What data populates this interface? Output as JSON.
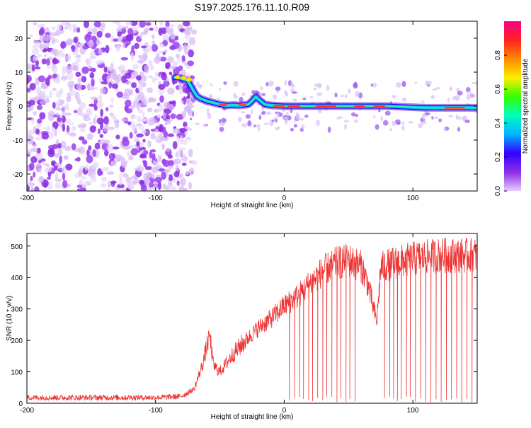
{
  "title": "S197.2025.176.11.10.R09",
  "chart_data": [
    {
      "type": "heatmap",
      "xlabel": "Height of straight line (km)",
      "ylabel": "Frequency (Hz)",
      "xlim": [
        -200,
        150
      ],
      "ylim": [
        -25,
        25
      ],
      "x_ticks": [
        -200,
        -100,
        0,
        100
      ],
      "x_tick_labels": [
        "-200",
        "-100",
        "0",
        "100"
      ],
      "y_ticks": [
        -20,
        -10,
        0,
        10,
        20
      ],
      "y_tick_labels": [
        "-20",
        "-10",
        "0",
        "10",
        "20"
      ],
      "colorbar": {
        "label": "Normalized spectral amplitude",
        "range": [
          0,
          1
        ],
        "ticks": [
          0.0,
          0.2,
          0.4,
          0.6,
          0.8
        ],
        "tick_labels": [
          "0.0",
          "0.2",
          "0.4",
          "0.6",
          "0.8"
        ],
        "colormap": [
          "#e6ccff",
          "#8c2ee6",
          "#3300ff",
          "#00b3ff",
          "#00ffbf",
          "#33ff00",
          "#ffee00",
          "#ff8800",
          "#ff2222",
          "#ff0080"
        ]
      },
      "noise_region_x": [
        -200,
        -78
      ],
      "ridge": [
        {
          "x": -85,
          "f": 8.5
        },
        {
          "x": -80,
          "f": 8.2
        },
        {
          "x": -75,
          "f": 7.5
        },
        {
          "x": -72,
          "f": 5.5
        },
        {
          "x": -70,
          "f": 4.2
        },
        {
          "x": -68,
          "f": 3.0
        },
        {
          "x": -65,
          "f": 2.2
        },
        {
          "x": -60,
          "f": 1.5
        },
        {
          "x": -55,
          "f": 1.0
        },
        {
          "x": -50,
          "f": 0.5
        },
        {
          "x": -45,
          "f": 0.2
        },
        {
          "x": -40,
          "f": 0.3
        },
        {
          "x": -35,
          "f": 0.2
        },
        {
          "x": -28,
          "f": 0.5
        },
        {
          "x": -25,
          "f": 1.5
        },
        {
          "x": -22,
          "f": 2.8
        },
        {
          "x": -20,
          "f": 2.0
        },
        {
          "x": -15,
          "f": 0.5
        },
        {
          "x": -10,
          "f": 0.2
        },
        {
          "x": 0,
          "f": 0.0
        },
        {
          "x": 20,
          "f": 0.0
        },
        {
          "x": 50,
          "f": 0.0
        },
        {
          "x": 80,
          "f": 0.0
        },
        {
          "x": 110,
          "f": -0.5
        },
        {
          "x": 130,
          "f": -0.5
        },
        {
          "x": 150,
          "f": -0.5
        }
      ],
      "peak_segments": [
        [
          -50,
          -45
        ],
        [
          -35,
          -30
        ],
        [
          -8,
          0
        ],
        [
          3,
          12
        ],
        [
          25,
          40
        ],
        [
          55,
          62
        ],
        [
          70,
          78
        ],
        [
          125,
          140
        ]
      ]
    },
    {
      "type": "line",
      "xlabel": "Height of straight line (km)",
      "ylabel": "SNR (10 * v/v)",
      "xlim": [
        -200,
        150
      ],
      "ylim": [
        0,
        540
      ],
      "x_ticks": [
        -200,
        -100,
        0,
        100
      ],
      "x_tick_labels": [
        "-200",
        "-100",
        "0",
        "100"
      ],
      "y_ticks": [
        0,
        100,
        200,
        300,
        400,
        500
      ],
      "y_tick_labels": [
        "0",
        "100",
        "200",
        "300",
        "400",
        "500"
      ],
      "color": "#ee3333",
      "envelope": {
        "x": [
          -200,
          -150,
          -100,
          -80,
          -70,
          -63,
          -58,
          -55,
          -50,
          -40,
          -30,
          -20,
          -10,
          0,
          10,
          20,
          30,
          40,
          50,
          60,
          65,
          70,
          72,
          75,
          80,
          90,
          100,
          110,
          120,
          130,
          140,
          150
        ],
        "y": [
          18,
          18,
          18,
          22,
          45,
          130,
          220,
          120,
          100,
          155,
          200,
          240,
          270,
          310,
          340,
          380,
          420,
          445,
          455,
          435,
          380,
          290,
          260,
          430,
          440,
          450,
          460,
          465,
          470,
          470,
          470,
          470
        ]
      },
      "dropouts_x": [
        4,
        8,
        12,
        15,
        19,
        22,
        26,
        30,
        33,
        37,
        41,
        44,
        48,
        51,
        55,
        78,
        82,
        85,
        88,
        91,
        95,
        98,
        102,
        106,
        110,
        114,
        118,
        122,
        126,
        130,
        134,
        138,
        142,
        146
      ]
    }
  ]
}
